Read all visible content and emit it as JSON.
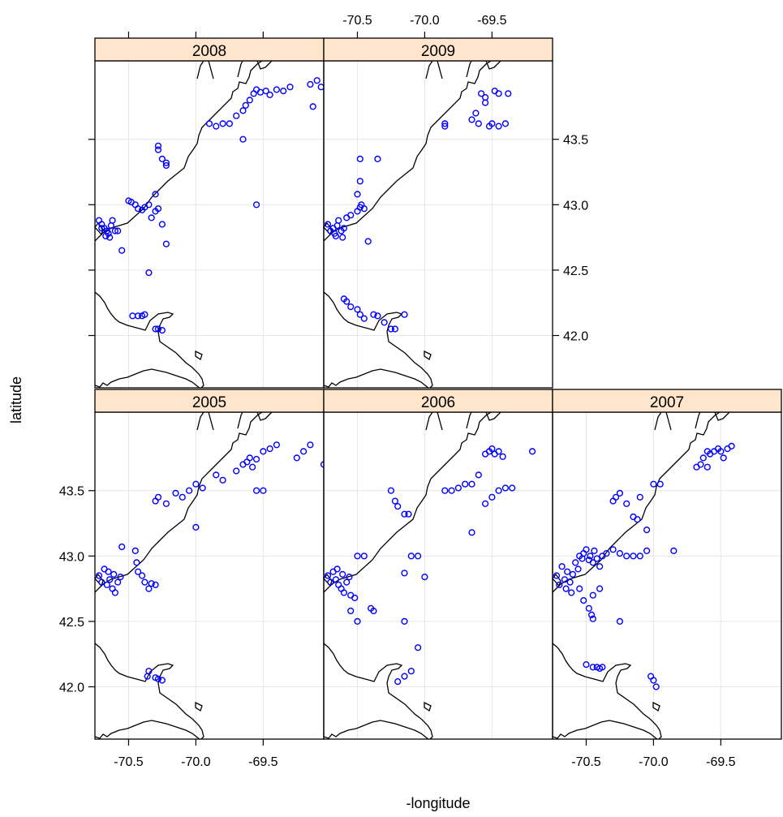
{
  "chart_data": {
    "type": "scatter",
    "xlabel": "-longitude",
    "ylabel": "latitude",
    "xlim": [
      -70.75,
      -69.05
    ],
    "ylim": [
      41.6,
      44.1
    ],
    "xticks": [
      -70.5,
      -70.0,
      -69.5
    ],
    "yticks": [
      42.0,
      42.5,
      43.0,
      43.5
    ],
    "xtick_labels": [
      "-70.5",
      "-70.0",
      "-69.5"
    ],
    "ytick_labels": [
      "42.0",
      "42.5",
      "43.0",
      "43.5"
    ],
    "grid": true,
    "point_color": "#0000ff",
    "strip_color": "#ffe5cc",
    "panels": [
      {
        "year": "2008",
        "points": [
          [
            -70.72,
            42.88
          ],
          [
            -70.7,
            42.85
          ],
          [
            -70.68,
            42.82
          ],
          [
            -70.66,
            42.8
          ],
          [
            -70.65,
            42.78
          ],
          [
            -70.67,
            42.76
          ],
          [
            -70.7,
            42.82
          ],
          [
            -70.63,
            42.84
          ],
          [
            -70.62,
            42.88
          ],
          [
            -70.64,
            42.75
          ],
          [
            -70.6,
            42.8
          ],
          [
            -70.58,
            42.8
          ],
          [
            -70.55,
            42.65
          ],
          [
            -70.5,
            43.03
          ],
          [
            -70.48,
            43.02
          ],
          [
            -70.45,
            43.0
          ],
          [
            -70.43,
            42.97
          ],
          [
            -70.4,
            42.96
          ],
          [
            -70.38,
            42.98
          ],
          [
            -70.35,
            43.0
          ],
          [
            -70.33,
            42.9
          ],
          [
            -70.3,
            43.08
          ],
          [
            -70.3,
            42.95
          ],
          [
            -70.28,
            42.97
          ],
          [
            -70.25,
            42.85
          ],
          [
            -70.22,
            42.7
          ],
          [
            -70.35,
            42.48
          ],
          [
            -70.28,
            43.45
          ],
          [
            -70.28,
            43.42
          ],
          [
            -70.25,
            43.35
          ],
          [
            -70.22,
            43.32
          ],
          [
            -70.22,
            43.3
          ],
          [
            -70.47,
            42.15
          ],
          [
            -70.43,
            42.15
          ],
          [
            -70.4,
            42.15
          ],
          [
            -70.38,
            42.16
          ],
          [
            -70.3,
            42.05
          ],
          [
            -70.28,
            42.05
          ],
          [
            -70.25,
            42.04
          ],
          [
            -69.9,
            43.62
          ],
          [
            -69.85,
            43.6
          ],
          [
            -69.8,
            43.62
          ],
          [
            -69.75,
            43.62
          ],
          [
            -69.7,
            43.68
          ],
          [
            -69.65,
            43.72
          ],
          [
            -69.63,
            43.76
          ],
          [
            -69.6,
            43.8
          ],
          [
            -69.57,
            43.85
          ],
          [
            -69.55,
            43.88
          ],
          [
            -69.52,
            43.86
          ],
          [
            -69.48,
            43.87
          ],
          [
            -69.45,
            43.84
          ],
          [
            -69.4,
            43.88
          ],
          [
            -69.35,
            43.87
          ],
          [
            -69.3,
            43.9
          ],
          [
            -69.65,
            43.5
          ],
          [
            -69.55,
            43.0
          ],
          [
            -69.1,
            43.95
          ],
          [
            -69.15,
            43.92
          ],
          [
            -69.07,
            43.9
          ],
          [
            -69.13,
            43.75
          ]
        ]
      },
      {
        "year": "2009",
        "points": [
          [
            -70.72,
            42.85
          ],
          [
            -70.7,
            42.8
          ],
          [
            -70.68,
            42.82
          ],
          [
            -70.67,
            42.78
          ],
          [
            -70.66,
            42.76
          ],
          [
            -70.65,
            42.84
          ],
          [
            -70.64,
            42.88
          ],
          [
            -70.62,
            42.8
          ],
          [
            -70.61,
            42.75
          ],
          [
            -70.6,
            42.82
          ],
          [
            -70.58,
            42.9
          ],
          [
            -70.55,
            42.92
          ],
          [
            -70.5,
            42.95
          ],
          [
            -70.48,
            42.98
          ],
          [
            -70.47,
            43.0
          ],
          [
            -70.45,
            42.97
          ],
          [
            -70.42,
            42.72
          ],
          [
            -70.5,
            43.08
          ],
          [
            -70.48,
            43.18
          ],
          [
            -70.48,
            43.35
          ],
          [
            -70.35,
            43.35
          ],
          [
            -70.6,
            42.28
          ],
          [
            -70.58,
            42.26
          ],
          [
            -70.55,
            42.22
          ],
          [
            -70.5,
            42.2
          ],
          [
            -70.48,
            42.16
          ],
          [
            -70.45,
            42.13
          ],
          [
            -70.38,
            42.16
          ],
          [
            -70.35,
            42.15
          ],
          [
            -70.3,
            42.1
          ],
          [
            -70.25,
            42.05
          ],
          [
            -70.22,
            42.05
          ],
          [
            -70.15,
            42.16
          ],
          [
            -69.85,
            43.6
          ],
          [
            -69.85,
            43.62
          ],
          [
            -69.65,
            43.65
          ],
          [
            -69.62,
            43.7
          ],
          [
            -69.6,
            43.62
          ],
          [
            -69.58,
            43.85
          ],
          [
            -69.55,
            43.82
          ],
          [
            -69.55,
            43.78
          ],
          [
            -69.52,
            43.6
          ],
          [
            -69.5,
            43.62
          ],
          [
            -69.48,
            43.87
          ],
          [
            -69.45,
            43.85
          ],
          [
            -69.45,
            43.6
          ],
          [
            -69.4,
            43.62
          ],
          [
            -69.38,
            43.85
          ]
        ]
      },
      {
        "year": "2005",
        "points": [
          [
            -70.72,
            42.85
          ],
          [
            -70.7,
            42.8
          ],
          [
            -70.68,
            42.9
          ],
          [
            -70.66,
            42.78
          ],
          [
            -70.65,
            42.88
          ],
          [
            -70.64,
            42.82
          ],
          [
            -70.62,
            42.75
          ],
          [
            -70.61,
            42.86
          ],
          [
            -70.6,
            42.72
          ],
          [
            -70.58,
            42.8
          ],
          [
            -70.56,
            42.84
          ],
          [
            -70.55,
            43.07
          ],
          [
            -70.45,
            43.04
          ],
          [
            -70.44,
            42.95
          ],
          [
            -70.43,
            42.88
          ],
          [
            -70.4,
            42.85
          ],
          [
            -70.38,
            42.8
          ],
          [
            -70.35,
            42.75
          ],
          [
            -70.33,
            42.79
          ],
          [
            -70.3,
            42.78
          ],
          [
            -70.35,
            42.12
          ],
          [
            -70.36,
            42.08
          ],
          [
            -70.3,
            42.07
          ],
          [
            -70.28,
            42.06
          ],
          [
            -70.25,
            42.05
          ],
          [
            -70.3,
            43.42
          ],
          [
            -70.28,
            43.45
          ],
          [
            -70.22,
            43.4
          ],
          [
            -70.15,
            43.48
          ],
          [
            -70.1,
            43.45
          ],
          [
            -70.05,
            43.5
          ],
          [
            -70.0,
            43.55
          ],
          [
            -69.95,
            43.52
          ],
          [
            -70.0,
            43.22
          ],
          [
            -69.85,
            43.62
          ],
          [
            -69.8,
            43.58
          ],
          [
            -69.7,
            43.65
          ],
          [
            -69.65,
            43.7
          ],
          [
            -69.62,
            43.72
          ],
          [
            -69.6,
            43.75
          ],
          [
            -69.55,
            43.74
          ],
          [
            -69.58,
            43.68
          ],
          [
            -69.5,
            43.8
          ],
          [
            -69.45,
            43.82
          ],
          [
            -69.4,
            43.85
          ],
          [
            -69.55,
            43.5
          ],
          [
            -69.5,
            43.5
          ],
          [
            -69.25,
            43.75
          ],
          [
            -69.2,
            43.8
          ],
          [
            -69.15,
            43.85
          ],
          [
            -69.05,
            43.7
          ]
        ]
      },
      {
        "year": "2006",
        "points": [
          [
            -70.72,
            42.85
          ],
          [
            -70.7,
            42.8
          ],
          [
            -70.68,
            42.88
          ],
          [
            -70.66,
            42.82
          ],
          [
            -70.65,
            42.9
          ],
          [
            -70.64,
            42.78
          ],
          [
            -70.62,
            42.75
          ],
          [
            -70.61,
            42.86
          ],
          [
            -70.6,
            42.72
          ],
          [
            -70.58,
            42.8
          ],
          [
            -70.56,
            42.84
          ],
          [
            -70.55,
            42.7
          ],
          [
            -70.52,
            42.68
          ],
          [
            -70.5,
            43.0
          ],
          [
            -70.45,
            43.0
          ],
          [
            -70.4,
            42.6
          ],
          [
            -70.38,
            42.58
          ],
          [
            -70.55,
            42.58
          ],
          [
            -70.5,
            42.5
          ],
          [
            -70.25,
            43.5
          ],
          [
            -70.22,
            43.42
          ],
          [
            -70.2,
            43.38
          ],
          [
            -70.15,
            43.32
          ],
          [
            -70.12,
            43.32
          ],
          [
            -70.1,
            43.0
          ],
          [
            -70.05,
            43.0
          ],
          [
            -70.0,
            42.84
          ],
          [
            -70.15,
            42.87
          ],
          [
            -70.15,
            42.5
          ],
          [
            -70.05,
            42.3
          ],
          [
            -70.1,
            42.12
          ],
          [
            -70.15,
            42.08
          ],
          [
            -70.2,
            42.04
          ],
          [
            -69.85,
            43.5
          ],
          [
            -69.8,
            43.5
          ],
          [
            -69.75,
            43.52
          ],
          [
            -69.7,
            43.55
          ],
          [
            -69.65,
            43.55
          ],
          [
            -69.6,
            43.62
          ],
          [
            -69.55,
            43.78
          ],
          [
            -69.52,
            43.8
          ],
          [
            -69.5,
            43.82
          ],
          [
            -69.48,
            43.78
          ],
          [
            -69.45,
            43.8
          ],
          [
            -69.42,
            43.76
          ],
          [
            -69.4,
            43.52
          ],
          [
            -69.45,
            43.5
          ],
          [
            -69.65,
            43.18
          ],
          [
            -69.55,
            43.4
          ],
          [
            -69.5,
            43.45
          ],
          [
            -69.35,
            43.52
          ],
          [
            -69.2,
            43.8
          ]
        ]
      },
      {
        "year": "2007",
        "points": [
          [
            -70.72,
            42.85
          ],
          [
            -70.7,
            42.78
          ],
          [
            -70.68,
            42.92
          ],
          [
            -70.66,
            42.82
          ],
          [
            -70.65,
            42.75
          ],
          [
            -70.64,
            42.88
          ],
          [
            -70.62,
            42.8
          ],
          [
            -70.61,
            42.72
          ],
          [
            -70.6,
            42.86
          ],
          [
            -70.58,
            42.95
          ],
          [
            -70.56,
            42.9
          ],
          [
            -70.55,
            43.0
          ],
          [
            -70.53,
            42.98
          ],
          [
            -70.52,
            43.02
          ],
          [
            -70.5,
            43.05
          ],
          [
            -70.48,
            42.97
          ],
          [
            -70.47,
            43.0
          ],
          [
            -70.45,
            42.95
          ],
          [
            -70.44,
            43.04
          ],
          [
            -70.42,
            42.98
          ],
          [
            -70.4,
            42.92
          ],
          [
            -70.38,
            43.0
          ],
          [
            -70.35,
            43.02
          ],
          [
            -70.3,
            43.05
          ],
          [
            -70.25,
            43.02
          ],
          [
            -70.2,
            43.0
          ],
          [
            -70.15,
            43.0
          ],
          [
            -70.1,
            43.0
          ],
          [
            -70.05,
            43.04
          ],
          [
            -70.55,
            42.75
          ],
          [
            -70.52,
            42.66
          ],
          [
            -70.48,
            42.6
          ],
          [
            -70.46,
            42.55
          ],
          [
            -70.45,
            42.52
          ],
          [
            -70.25,
            42.5
          ],
          [
            -70.4,
            42.75
          ],
          [
            -70.45,
            42.7
          ],
          [
            -70.3,
            43.42
          ],
          [
            -70.28,
            43.45
          ],
          [
            -70.25,
            43.48
          ],
          [
            -70.2,
            43.4
          ],
          [
            -70.15,
            43.3
          ],
          [
            -70.12,
            43.28
          ],
          [
            -70.1,
            43.45
          ],
          [
            -70.0,
            43.55
          ],
          [
            -69.95,
            43.55
          ],
          [
            -70.05,
            43.2
          ],
          [
            -69.85,
            43.04
          ],
          [
            -70.5,
            42.17
          ],
          [
            -70.45,
            42.15
          ],
          [
            -70.42,
            42.15
          ],
          [
            -70.4,
            42.14
          ],
          [
            -70.38,
            42.15
          ],
          [
            -70.0,
            42.05
          ],
          [
            -70.02,
            42.08
          ],
          [
            -69.98,
            42.0
          ],
          [
            -69.68,
            43.68
          ],
          [
            -69.65,
            43.7
          ],
          [
            -69.63,
            43.75
          ],
          [
            -69.6,
            43.8
          ],
          [
            -69.58,
            43.78
          ],
          [
            -69.55,
            43.8
          ],
          [
            -69.52,
            43.82
          ],
          [
            -69.5,
            43.8
          ],
          [
            -69.48,
            43.75
          ],
          [
            -69.45,
            43.82
          ],
          [
            -69.42,
            43.84
          ],
          [
            -69.6,
            43.68
          ]
        ]
      }
    ]
  }
}
